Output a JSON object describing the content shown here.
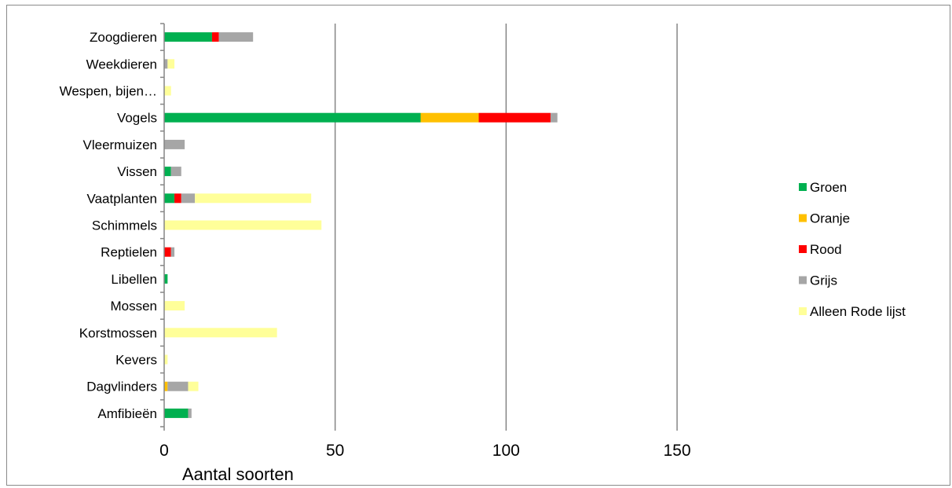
{
  "chart_data": {
    "type": "bar",
    "orientation": "horizontal",
    "stacked": true,
    "title": "",
    "xlabel": "Aantal soorten",
    "ylabel": "",
    "xlim": [
      0,
      150
    ],
    "xticks": [
      0,
      50,
      100,
      150
    ],
    "grid": "vertical",
    "legend_position": "right",
    "categories": [
      "Zoogdieren",
      "Weekdieren",
      "Wespen, bijen…",
      "Vogels",
      "Vleermuizen",
      "Vissen",
      "Vaatplanten",
      "Schimmels",
      "Reptielen",
      "Libellen",
      "Mossen",
      "Korstmossen",
      "Kevers",
      "Dagvlinders",
      "Amfibieën"
    ],
    "series": [
      {
        "name": "Groen",
        "color": "#00b050",
        "values": [
          14,
          0,
          0,
          75,
          0,
          2,
          3,
          0,
          0,
          1,
          0,
          0,
          0,
          0,
          7
        ]
      },
      {
        "name": "Oranje",
        "color": "#ffc000",
        "values": [
          0,
          0,
          0,
          17,
          0,
          0,
          0,
          0,
          0,
          0,
          0,
          0,
          0,
          1,
          0
        ]
      },
      {
        "name": "Rood",
        "color": "#ff0000",
        "values": [
          2,
          0,
          0,
          21,
          0,
          0,
          2,
          0,
          2,
          0,
          0,
          0,
          0,
          0,
          0
        ]
      },
      {
        "name": "Grijs",
        "color": "#a6a6a6",
        "values": [
          10,
          1,
          0,
          2,
          6,
          3,
          4,
          0,
          1,
          0,
          0,
          0,
          0,
          6,
          1
        ]
      },
      {
        "name": "Alleen Rode lijst",
        "color": "#ffff99",
        "values": [
          0,
          2,
          2,
          0,
          0,
          0,
          34,
          46,
          0,
          0,
          6,
          33,
          1,
          3,
          0
        ]
      }
    ]
  }
}
